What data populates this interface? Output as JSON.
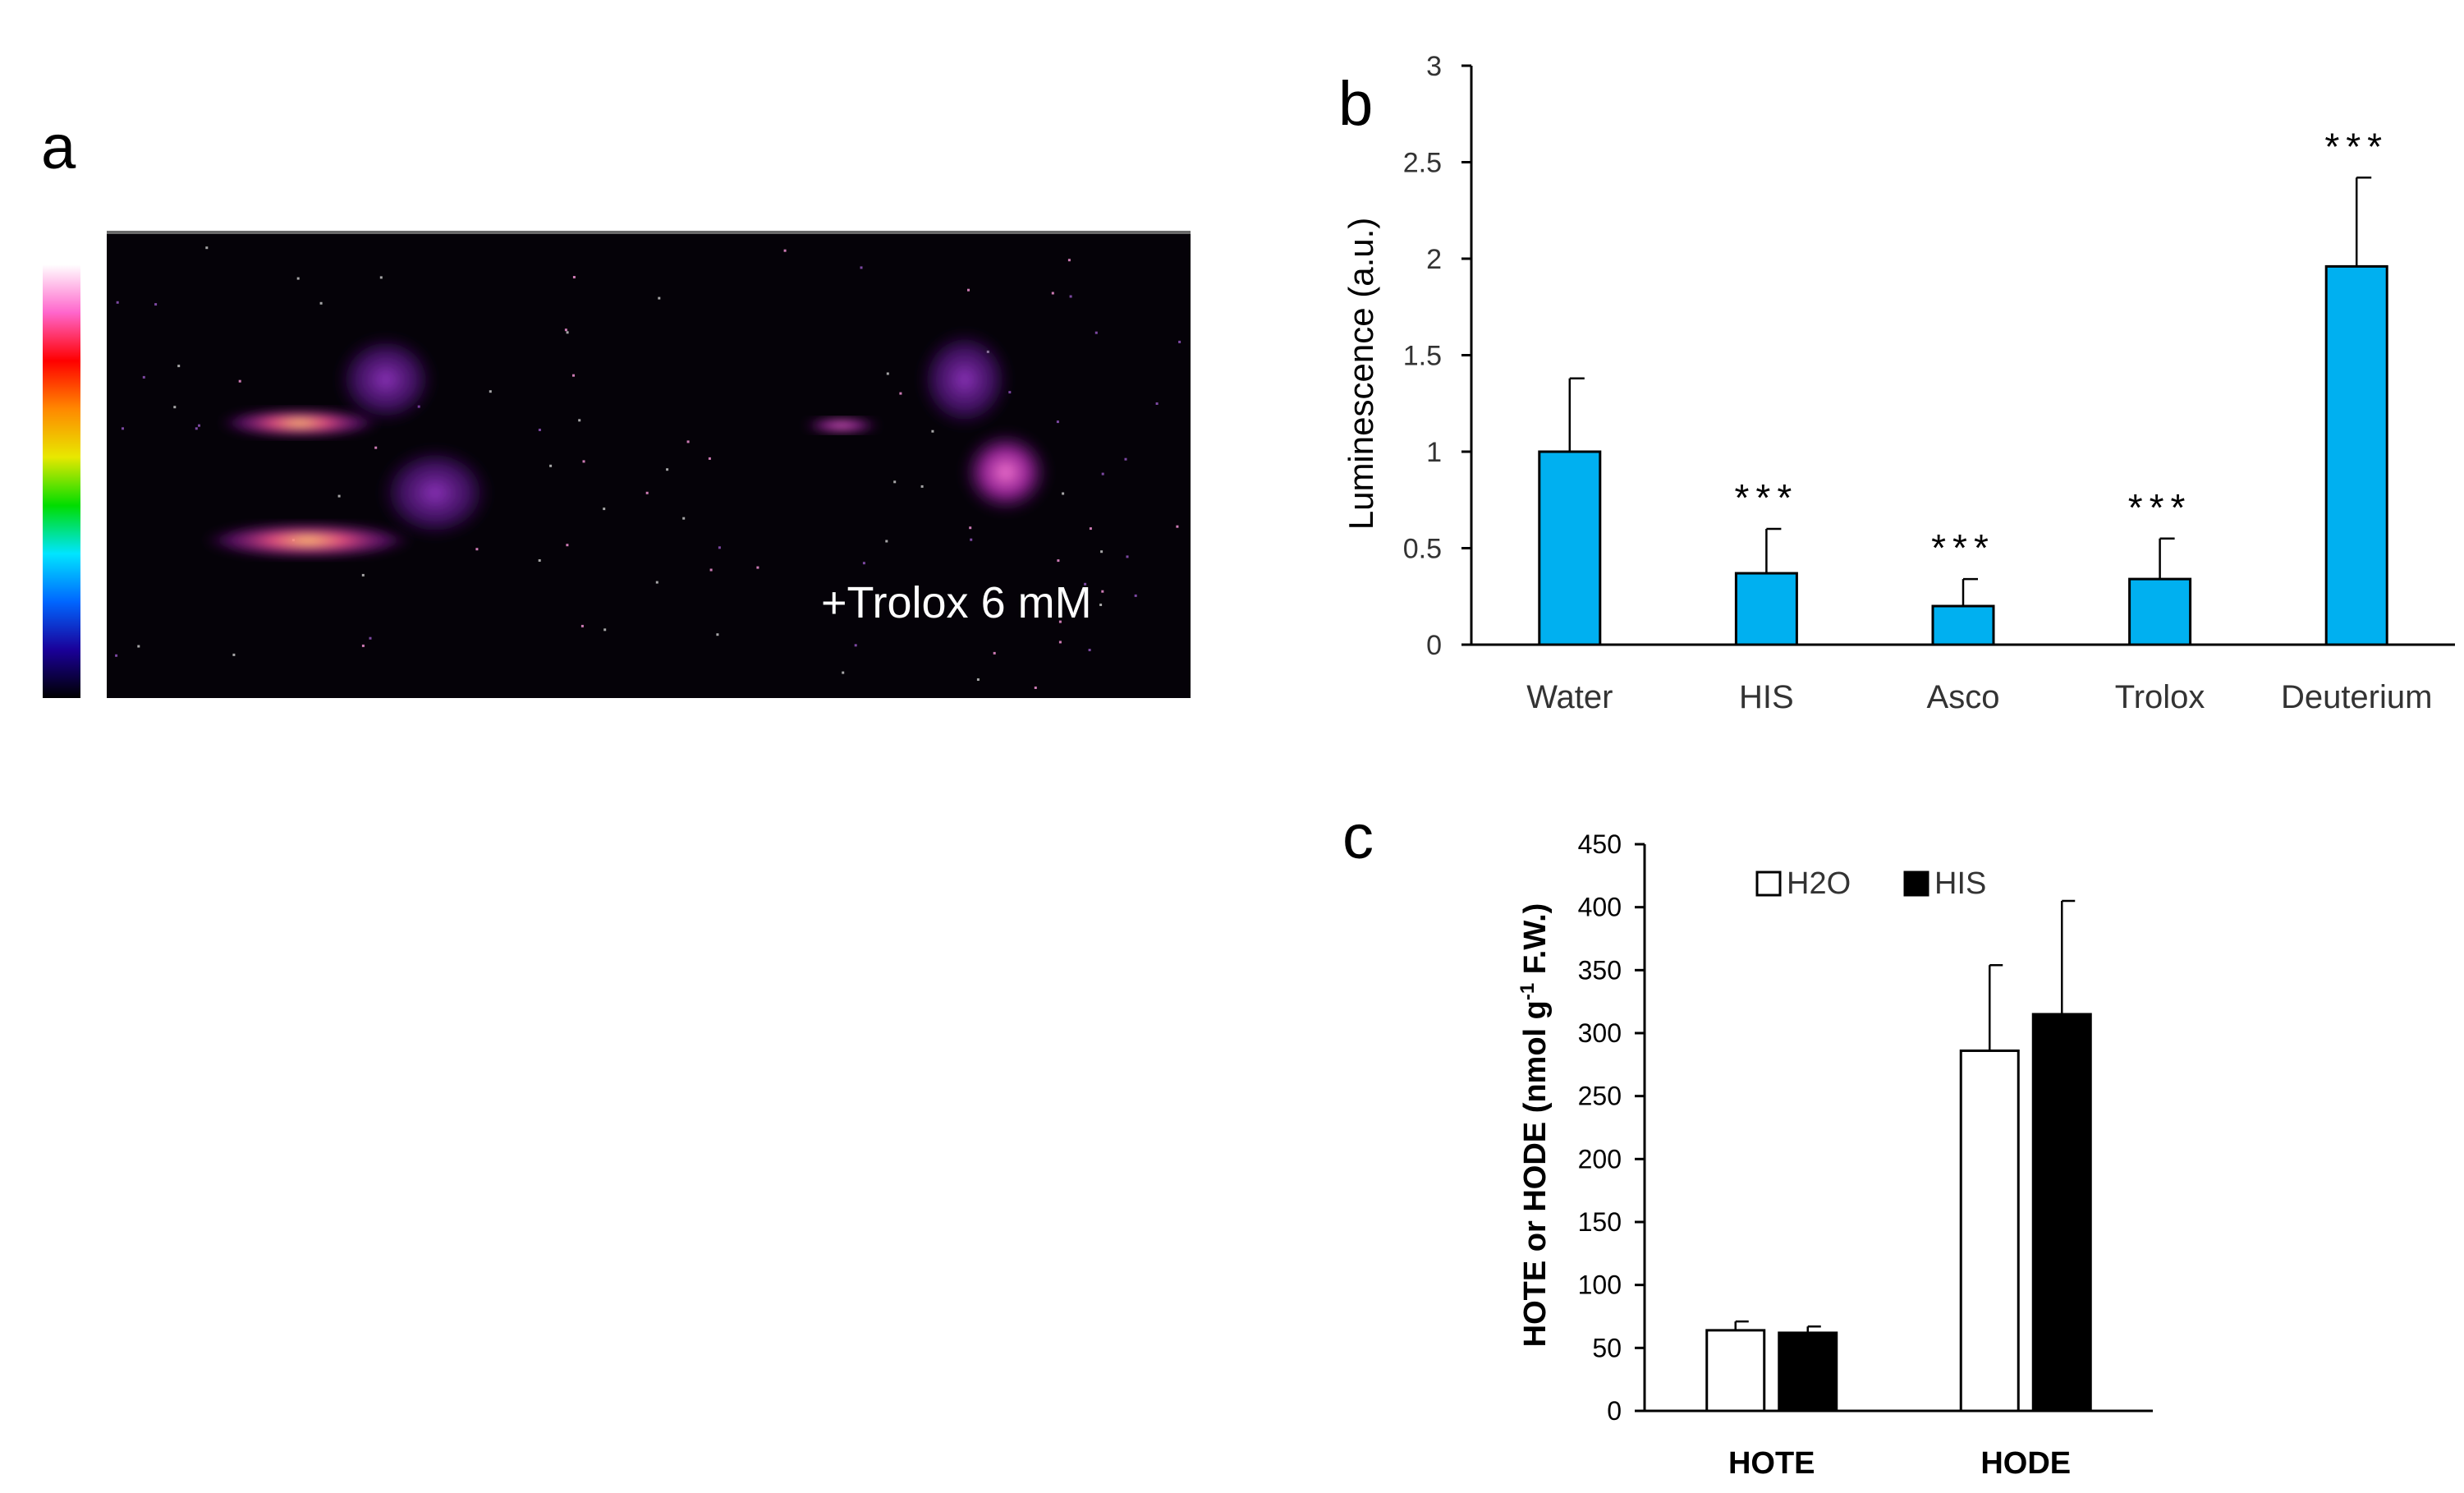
{
  "panels": {
    "a": {
      "letter": "a",
      "annotation": "+Trolox 6 mM",
      "colormap": [
        "#000000",
        "#1a0099",
        "#0066ff",
        "#00e5ff",
        "#00dd00",
        "#e8e800",
        "#ff8800",
        "#ff0000",
        "#ff66cc",
        "#ffffff"
      ]
    },
    "b": {
      "letter": "b"
    },
    "c": {
      "letter": "c"
    }
  },
  "colors": {
    "bar_b": "#00b0f0",
    "bar_c_h2o": "#ffffff",
    "bar_c_his": "#000000"
  },
  "chart_data": [
    {
      "id": "b",
      "type": "bar",
      "categories": [
        "Water",
        "HIS",
        "Asco",
        "Trolox",
        "Deuterium"
      ],
      "values": [
        1.0,
        0.37,
        0.2,
        0.34,
        1.96
      ],
      "errors": [
        0.38,
        0.23,
        0.14,
        0.21,
        0.46
      ],
      "significance": [
        "",
        "***",
        "***",
        "***",
        "***"
      ],
      "ylabel": "Luminescence  (a.u.)",
      "xlabel": "",
      "ylim": [
        0,
        3
      ],
      "yticks": [
        "0",
        "0.5",
        "1",
        "1.5",
        "2",
        "2.5",
        "3"
      ],
      "grid": false
    },
    {
      "id": "c",
      "type": "bar",
      "categories": [
        "HOTE",
        "HODE"
      ],
      "series": [
        {
          "name": "H2O",
          "values": [
            64,
            286
          ],
          "errors": [
            7,
            68
          ]
        },
        {
          "name": "HIS",
          "values": [
            62,
            315
          ],
          "errors": [
            5,
            90
          ]
        }
      ],
      "ylabel_main": "HOTE or HODE  (nmol g",
      "ylabel_sup": "-1",
      "ylabel_end": " F.W.)",
      "xlabel": "",
      "ylim": [
        0,
        450
      ],
      "yticks": [
        "0",
        "50",
        "100",
        "150",
        "200",
        "250",
        "300",
        "350",
        "400",
        "450"
      ],
      "legend_position": "top-left",
      "grid": false
    }
  ]
}
